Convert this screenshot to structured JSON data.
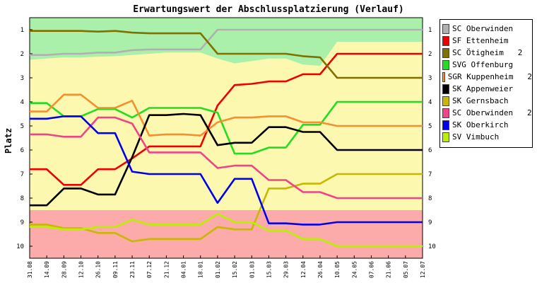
{
  "chart_data": {
    "type": "line",
    "title": "Erwartungswert der Abschlussplatzierung (Verlauf)",
    "ylabel": "Platz",
    "xlabel": "",
    "ylim": [
      0.5,
      10.5
    ],
    "y_inverted": true,
    "y_ticks": [
      "1",
      "2",
      "3",
      "4",
      "5",
      "6",
      "7",
      "8",
      "9",
      "10"
    ],
    "x_ticks": [
      "31.08",
      "14.09",
      "28.09",
      "12.10",
      "26.10",
      "09.11",
      "23.11",
      "07.12",
      "21.12",
      "04.01",
      "18.01",
      "01.02",
      "15.02",
      "01.03",
      "15.03",
      "29.03",
      "12.04",
      "26.04",
      "10.05",
      "24.05",
      "07.06",
      "21.06",
      "05.07",
      "12.07"
    ],
    "zones": [
      {
        "name": "green",
        "color": "#aaf0aa"
      },
      {
        "name": "yellow",
        "color": "#fcf8b0"
      },
      {
        "name": "red",
        "color": "#fcaaaa"
      }
    ],
    "series": [
      {
        "name": "SC Oberwinden",
        "color": "#b0b0b0",
        "values": [
          2.05,
          2.05,
          2.0,
          2.0,
          1.95,
          1.95,
          1.85,
          1.82,
          1.82,
          1.82,
          1.82,
          1.0,
          1.0,
          1.0,
          1.0,
          1.0,
          1.0,
          1.0,
          1.0,
          1.0,
          1.0,
          1.0,
          1.0,
          1.0
        ]
      },
      {
        "name": "SF Ettenheim",
        "color": "#ee0000",
        "values": [
          6.8,
          6.8,
          7.45,
          7.45,
          6.8,
          6.8,
          6.35,
          5.85,
          5.85,
          5.85,
          5.85,
          4.15,
          3.3,
          3.25,
          3.15,
          3.15,
          2.85,
          2.85,
          2.0,
          2.0,
          2.0,
          2.0,
          2.0,
          2.0
        ]
      },
      {
        "name": "SC Ötigheim   2",
        "color": "#807000",
        "values": [
          1.05,
          1.05,
          1.05,
          1.05,
          1.08,
          1.05,
          1.12,
          1.15,
          1.15,
          1.15,
          1.15,
          2.0,
          2.0,
          2.0,
          2.0,
          2.0,
          2.1,
          2.15,
          3.0,
          3.0,
          3.0,
          3.0,
          3.0,
          3.0
        ]
      },
      {
        "name": "SVG Offenburg",
        "color": "#22dd22",
        "values": [
          4.05,
          4.05,
          4.6,
          4.6,
          4.3,
          4.3,
          4.65,
          4.25,
          4.25,
          4.25,
          4.25,
          4.45,
          6.15,
          6.15,
          5.9,
          5.9,
          4.95,
          4.95,
          4.0,
          4.0,
          4.0,
          4.0,
          4.0,
          4.0
        ]
      },
      {
        "name": "SGR Kuppenheim   2",
        "color": "#f49030",
        "values": [
          4.4,
          4.4,
          3.7,
          3.7,
          4.25,
          4.25,
          3.95,
          5.4,
          5.35,
          5.35,
          5.4,
          4.85,
          4.65,
          4.65,
          4.6,
          4.6,
          4.85,
          4.85,
          5.0,
          5.0,
          5.0,
          5.0,
          5.0,
          5.0
        ]
      },
      {
        "name": "SK Appenweier",
        "color": "#000000",
        "values": [
          8.3,
          8.3,
          7.6,
          7.6,
          7.85,
          7.85,
          6.3,
          4.55,
          4.55,
          4.5,
          4.55,
          5.8,
          5.7,
          5.7,
          5.05,
          5.05,
          5.25,
          5.25,
          6.0,
          6.0,
          6.0,
          6.0,
          6.0,
          6.0
        ]
      },
      {
        "name": "SK Gernsbach",
        "color": "#c8b800",
        "values": [
          9.1,
          9.1,
          9.25,
          9.25,
          9.45,
          9.45,
          9.8,
          9.7,
          9.7,
          9.7,
          9.7,
          9.2,
          9.3,
          9.3,
          7.6,
          7.6,
          7.4,
          7.4,
          7.0,
          7.0,
          7.0,
          7.0,
          7.0,
          7.0
        ]
      },
      {
        "name": "SC Oberwinden   2",
        "color": "#ee4488",
        "values": [
          5.35,
          5.35,
          5.45,
          5.45,
          4.65,
          4.65,
          4.9,
          6.1,
          6.1,
          6.1,
          6.1,
          6.75,
          6.65,
          6.65,
          7.25,
          7.25,
          7.75,
          7.75,
          8.0,
          8.0,
          8.0,
          8.0,
          8.0,
          8.0
        ]
      },
      {
        "name": "SK Oberkirch",
        "color": "#0000ee",
        "values": [
          4.7,
          4.7,
          4.6,
          4.6,
          5.3,
          5.3,
          6.9,
          7.0,
          7.0,
          7.0,
          7.0,
          8.2,
          7.2,
          7.2,
          9.05,
          9.05,
          9.1,
          9.1,
          9.0,
          9.0,
          9.0,
          9.0,
          9.0,
          9.0
        ]
      },
      {
        "name": "SV Vimbuch",
        "color": "#bbf000",
        "values": [
          9.2,
          9.2,
          9.3,
          9.3,
          9.2,
          9.2,
          8.9,
          9.1,
          9.1,
          9.1,
          9.1,
          8.65,
          9.0,
          9.0,
          9.35,
          9.35,
          9.7,
          9.7,
          10.0,
          10.0,
          10.0,
          10.0,
          10.0,
          10.0
        ]
      }
    ]
  }
}
